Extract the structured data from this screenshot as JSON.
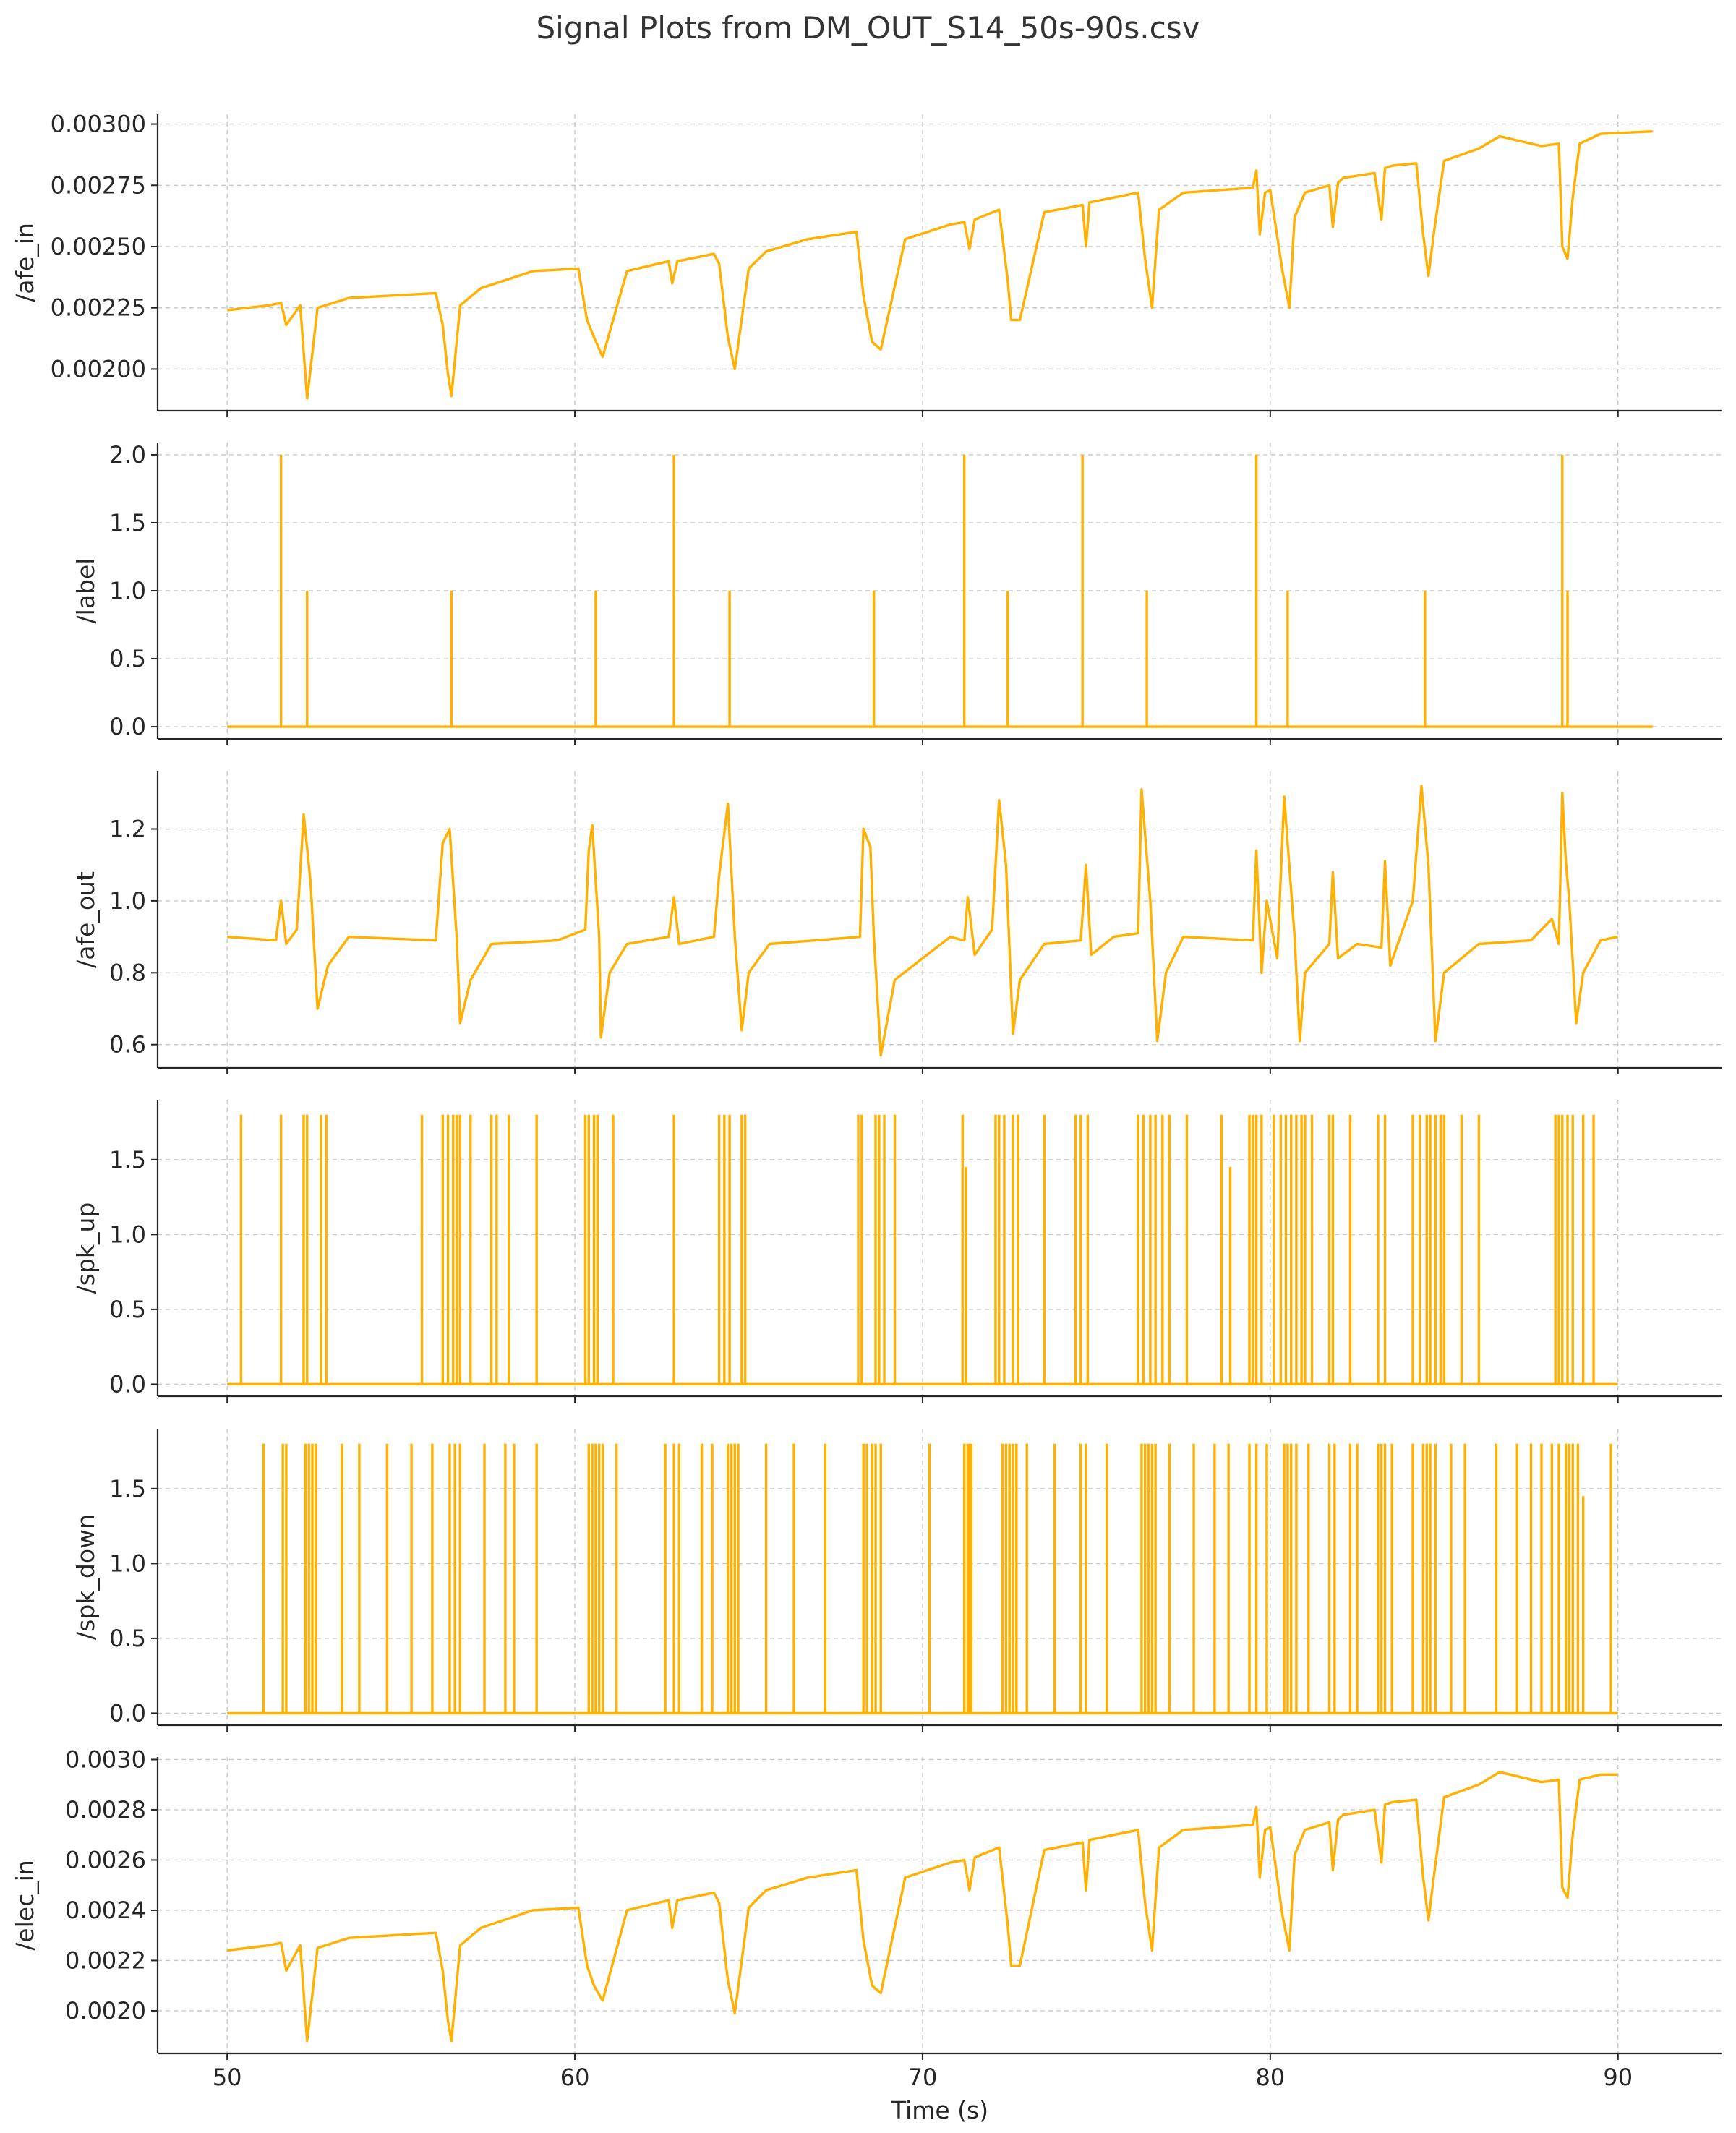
{
  "title": "Signal Plots from DM_OUT_S14_50s-90s.csv",
  "colors": {
    "line": "#FFB000",
    "grid": "#c8c8c8",
    "axis": "#262626"
  },
  "chart_data": [
    {
      "type": "line",
      "ylabel": "/afe_in",
      "xlim": [
        48,
        93
      ],
      "ylim": [
        0.00183,
        0.00304
      ],
      "x_ticks": [
        50,
        60,
        70,
        80,
        90
      ],
      "y_ticks": [
        0.002,
        0.00225,
        0.0025,
        0.00275,
        0.003
      ],
      "y_tick_labels": [
        "0.00200",
        "0.00225",
        "0.00250",
        "0.00275",
        "0.00300"
      ],
      "grid": true,
      "x": [
        50,
        51.2,
        51.55,
        51.7,
        52.1,
        52.3,
        52.6,
        53.5,
        56.0,
        56.2,
        56.35,
        56.45,
        56.7,
        57.3,
        58.8,
        60.1,
        60.35,
        60.55,
        60.8,
        61.5,
        62.7,
        62.8,
        62.95,
        64.0,
        64.15,
        64.4,
        64.6,
        65.0,
        65.5,
        66.7,
        68.1,
        68.3,
        68.55,
        68.8,
        69.5,
        70.8,
        71.2,
        71.35,
        71.5,
        72.2,
        72.45,
        72.55,
        72.8,
        73.5,
        74.6,
        74.7,
        74.8,
        75.5,
        76.2,
        76.4,
        76.6,
        76.8,
        77.5,
        79.5,
        79.6,
        79.7,
        79.85,
        80.0,
        80.35,
        80.55,
        80.7,
        81.0,
        81.7,
        81.8,
        81.95,
        82.1,
        83.0,
        83.2,
        83.3,
        83.5,
        84.2,
        84.4,
        84.55,
        84.7,
        85.0,
        86.0,
        86.6,
        87.8,
        88.3,
        88.4,
        88.55,
        88.7,
        88.9,
        89.5,
        91.0
      ],
      "y": [
        0.00224,
        0.00226,
        0.00227,
        0.00218,
        0.00226,
        0.00188,
        0.00225,
        0.00229,
        0.00231,
        0.00218,
        0.00198,
        0.00189,
        0.00226,
        0.00233,
        0.0024,
        0.00241,
        0.0022,
        0.00213,
        0.00205,
        0.0024,
        0.00244,
        0.00235,
        0.00244,
        0.00247,
        0.00243,
        0.00213,
        0.002,
        0.00241,
        0.00248,
        0.00253,
        0.00256,
        0.0023,
        0.00211,
        0.00208,
        0.00253,
        0.00259,
        0.0026,
        0.00249,
        0.00261,
        0.00265,
        0.00236,
        0.0022,
        0.0022,
        0.00264,
        0.00267,
        0.0025,
        0.00268,
        0.0027,
        0.00272,
        0.00245,
        0.00225,
        0.00265,
        0.00272,
        0.00274,
        0.00281,
        0.00255,
        0.00272,
        0.00273,
        0.0024,
        0.00225,
        0.00262,
        0.00272,
        0.00275,
        0.00258,
        0.00276,
        0.00278,
        0.0028,
        0.00261,
        0.00282,
        0.00283,
        0.00284,
        0.00255,
        0.00238,
        0.00255,
        0.00285,
        0.0029,
        0.00295,
        0.00291,
        0.00292,
        0.0025,
        0.00245,
        0.0027,
        0.00292,
        0.00296,
        0.00297
      ]
    },
    {
      "type": "line",
      "ylabel": "/label",
      "xlim": [
        48,
        93
      ],
      "ylim": [
        -0.09,
        2.09
      ],
      "x_ticks": [
        50,
        60,
        70,
        80,
        90
      ],
      "y_ticks": [
        0,
        0.5,
        1,
        1.5,
        2
      ],
      "y_tick_labels": [
        "0.0",
        "0.5",
        "1.0",
        "1.5",
        "2.0"
      ],
      "grid": true,
      "x_range": [
        50,
        91
      ],
      "baseline": 0,
      "spikes": [
        {
          "x": 51.55,
          "value": 2
        },
        {
          "x": 52.3,
          "value": 1
        },
        {
          "x": 56.45,
          "value": 1
        },
        {
          "x": 60.6,
          "value": 1
        },
        {
          "x": 62.85,
          "value": 2
        },
        {
          "x": 64.45,
          "value": 1
        },
        {
          "x": 68.6,
          "value": 1
        },
        {
          "x": 71.2,
          "value": 2
        },
        {
          "x": 72.45,
          "value": 1
        },
        {
          "x": 74.6,
          "value": 2
        },
        {
          "x": 76.45,
          "value": 1
        },
        {
          "x": 79.6,
          "value": 2
        },
        {
          "x": 80.5,
          "value": 1
        },
        {
          "x": 84.45,
          "value": 1
        },
        {
          "x": 88.4,
          "value": 2
        },
        {
          "x": 88.55,
          "value": 1
        }
      ]
    },
    {
      "type": "line",
      "ylabel": "/afe_out",
      "xlim": [
        48,
        93
      ],
      "ylim": [
        0.535,
        1.36
      ],
      "x_ticks": [
        50,
        60,
        70,
        80,
        90
      ],
      "y_ticks": [
        0.6,
        0.8,
        1.0,
        1.2
      ],
      "y_tick_labels": [
        "0.6",
        "0.8",
        "1.0",
        "1.2"
      ],
      "grid": true,
      "x": [
        50,
        51.4,
        51.55,
        51.7,
        52.0,
        52.2,
        52.4,
        52.6,
        52.9,
        53.5,
        56.0,
        56.2,
        56.4,
        56.6,
        56.7,
        57.0,
        57.6,
        59.5,
        60.3,
        60.4,
        60.5,
        60.7,
        60.75,
        61.0,
        61.5,
        62.7,
        62.85,
        63.0,
        64.0,
        64.15,
        64.4,
        64.6,
        64.8,
        65.0,
        65.6,
        68.2,
        68.3,
        68.5,
        68.6,
        68.8,
        69.2,
        70.8,
        71.2,
        71.3,
        71.5,
        72.0,
        72.2,
        72.4,
        72.6,
        72.8,
        73.5,
        74.55,
        74.7,
        74.85,
        75.5,
        76.2,
        76.3,
        76.55,
        76.75,
        77.0,
        77.5,
        79.5,
        79.6,
        79.75,
        79.9,
        80.2,
        80.4,
        80.7,
        80.85,
        81.0,
        81.7,
        81.8,
        81.95,
        82.5,
        83.2,
        83.3,
        83.45,
        84.1,
        84.35,
        84.55,
        84.75,
        85.0,
        86.0,
        87.5,
        88.1,
        88.3,
        88.4,
        88.5,
        88.6,
        88.8,
        89.0,
        89.5,
        90.0
      ],
      "y": [
        0.9,
        0.89,
        1.0,
        0.88,
        0.92,
        1.24,
        1.05,
        0.7,
        0.82,
        0.9,
        0.89,
        1.16,
        1.2,
        0.9,
        0.66,
        0.78,
        0.88,
        0.89,
        0.92,
        1.14,
        1.21,
        0.9,
        0.62,
        0.8,
        0.88,
        0.9,
        1.01,
        0.88,
        0.9,
        1.07,
        1.27,
        0.9,
        0.64,
        0.8,
        0.88,
        0.9,
        1.2,
        1.15,
        0.9,
        0.57,
        0.78,
        0.9,
        0.89,
        1.01,
        0.85,
        0.92,
        1.28,
        1.1,
        0.63,
        0.78,
        0.88,
        0.89,
        1.1,
        0.85,
        0.9,
        0.91,
        1.31,
        1.0,
        0.61,
        0.8,
        0.9,
        0.89,
        1.14,
        0.8,
        1.0,
        0.84,
        1.29,
        0.9,
        0.61,
        0.8,
        0.88,
        1.08,
        0.84,
        0.88,
        0.87,
        1.11,
        0.82,
        1.0,
        1.32,
        1.1,
        0.61,
        0.8,
        0.88,
        0.89,
        0.95,
        0.88,
        1.3,
        1.11,
        1.0,
        0.66,
        0.8,
        0.89,
        0.9
      ]
    },
    {
      "type": "line",
      "ylabel": "/spk_up",
      "xlim": [
        48,
        93
      ],
      "ylim": [
        -0.08,
        1.9
      ],
      "x_ticks": [
        50,
        60,
        70,
        80,
        90
      ],
      "y_ticks": [
        0,
        0.5,
        1,
        1.5
      ],
      "y_tick_labels": [
        "0.0",
        "0.5",
        "1.0",
        "1.5"
      ],
      "grid": true,
      "x_range": [
        50,
        90
      ],
      "baseline": 0,
      "spike_height": 1.8,
      "spike_times": [
        50.4,
        51.55,
        52.2,
        52.3,
        52.7,
        52.85,
        55.6,
        56.2,
        56.35,
        56.5,
        56.6,
        56.7,
        57.0,
        57.6,
        57.75,
        58.1,
        58.9,
        60.3,
        60.4,
        60.55,
        60.65,
        61.1,
        62.85,
        64.15,
        64.3,
        64.45,
        64.8,
        64.9,
        68.15,
        68.25,
        68.65,
        68.75,
        68.9,
        69.2,
        71.15,
        72.1,
        72.2,
        72.35,
        72.6,
        72.75,
        73.5,
        74.4,
        74.55,
        74.75,
        76.2,
        76.35,
        76.55,
        76.7,
        76.9,
        77.1,
        77.6,
        78.6,
        79.4,
        79.5,
        79.6,
        79.75,
        80.1,
        80.3,
        80.45,
        80.6,
        80.75,
        80.9,
        81.0,
        81.2,
        81.7,
        81.8,
        82.3,
        83.1,
        83.3,
        84.1,
        84.3,
        84.5,
        84.6,
        84.75,
        84.9,
        85.0,
        85.5,
        86.0,
        88.2,
        88.3,
        88.4,
        88.55,
        88.7,
        89.0,
        89.3
      ],
      "partial_spikes": [
        {
          "x": 71.25,
          "value": 1.45
        },
        {
          "x": 78.85,
          "value": 1.45
        }
      ]
    },
    {
      "type": "line",
      "ylabel": "/spk_down",
      "xlim": [
        48,
        93
      ],
      "ylim": [
        -0.08,
        1.9
      ],
      "x_ticks": [
        50,
        60,
        70,
        80,
        90
      ],
      "y_ticks": [
        0,
        0.5,
        1,
        1.5
      ],
      "y_tick_labels": [
        "0.0",
        "0.5",
        "1.0",
        "1.5"
      ],
      "grid": true,
      "x_range": [
        50,
        90
      ],
      "baseline": 0,
      "spike_height": 1.8,
      "spike_times": [
        51.05,
        51.6,
        51.7,
        52.25,
        52.35,
        52.45,
        52.55,
        53.3,
        53.8,
        54.6,
        55.3,
        55.9,
        56.4,
        56.55,
        56.7,
        57.4,
        58.0,
        58.25,
        58.9,
        60.4,
        60.5,
        60.6,
        60.7,
        60.8,
        61.2,
        62.6,
        62.85,
        63.0,
        63.65,
        63.95,
        64.4,
        64.5,
        64.6,
        64.7,
        65.5,
        66.3,
        67.2,
        68.3,
        68.4,
        68.55,
        68.65,
        68.8,
        70.2,
        71.2,
        71.3,
        71.35,
        71.4,
        72.3,
        72.4,
        72.5,
        72.6,
        72.7,
        73.0,
        73.8,
        74.55,
        74.7,
        75.3,
        76.3,
        76.4,
        76.5,
        76.6,
        76.7,
        77.1,
        77.8,
        78.4,
        78.8,
        79.4,
        79.6,
        79.9,
        80.4,
        80.5,
        80.6,
        80.75,
        81.1,
        81.7,
        81.85,
        82.3,
        82.5,
        83.1,
        83.2,
        83.3,
        83.5,
        84.1,
        84.4,
        84.5,
        84.6,
        84.75,
        85.2,
        85.6,
        86.5,
        87.1,
        87.5,
        87.8,
        88.1,
        88.3,
        88.5,
        88.6,
        88.7,
        88.85,
        89.8
      ],
      "partial_spikes": [
        {
          "x": 89.0,
          "value": 1.45
        }
      ]
    },
    {
      "type": "line",
      "ylabel": "/elec_in",
      "xlabel": "Time (s)",
      "xlim": [
        48,
        93
      ],
      "ylim": [
        0.00183,
        0.00301
      ],
      "x_ticks": [
        50,
        60,
        70,
        80,
        90
      ],
      "x_tick_labels": [
        "50",
        "60",
        "70",
        "80",
        "90"
      ],
      "y_ticks": [
        0.002,
        0.0022,
        0.0024,
        0.0026,
        0.0028,
        0.003
      ],
      "y_tick_labels": [
        "0.0020",
        "0.0022",
        "0.0024",
        "0.0026",
        "0.0028",
        "0.0030"
      ],
      "grid": true,
      "x": [
        50,
        51.2,
        51.55,
        51.7,
        52.1,
        52.3,
        52.6,
        53.5,
        56.0,
        56.2,
        56.35,
        56.45,
        56.7,
        57.3,
        58.8,
        60.1,
        60.35,
        60.55,
        60.8,
        61.5,
        62.7,
        62.8,
        62.95,
        64.0,
        64.15,
        64.4,
        64.6,
        65.0,
        65.5,
        66.7,
        68.1,
        68.3,
        68.55,
        68.8,
        69.5,
        70.8,
        71.2,
        71.35,
        71.5,
        72.2,
        72.45,
        72.55,
        72.8,
        73.5,
        74.6,
        74.7,
        74.8,
        75.5,
        76.2,
        76.4,
        76.6,
        76.8,
        77.5,
        79.5,
        79.6,
        79.7,
        79.85,
        80.0,
        80.35,
        80.55,
        80.7,
        81.0,
        81.7,
        81.8,
        81.95,
        82.1,
        83.0,
        83.2,
        83.3,
        83.5,
        84.2,
        84.4,
        84.55,
        84.7,
        85.0,
        86.0,
        86.6,
        87.8,
        88.3,
        88.4,
        88.55,
        88.7,
        88.9,
        89.5,
        90.0
      ],
      "y": [
        0.00224,
        0.00226,
        0.00227,
        0.00216,
        0.00226,
        0.00188,
        0.00225,
        0.00229,
        0.00231,
        0.00216,
        0.00196,
        0.00188,
        0.00226,
        0.00233,
        0.0024,
        0.00241,
        0.00218,
        0.0021,
        0.00204,
        0.0024,
        0.00244,
        0.00233,
        0.00244,
        0.00247,
        0.00243,
        0.00212,
        0.00199,
        0.00241,
        0.00248,
        0.00253,
        0.00256,
        0.00228,
        0.0021,
        0.00207,
        0.00253,
        0.00259,
        0.0026,
        0.00248,
        0.00261,
        0.00265,
        0.00234,
        0.00218,
        0.00218,
        0.00264,
        0.00267,
        0.00248,
        0.00268,
        0.0027,
        0.00272,
        0.00243,
        0.00224,
        0.00265,
        0.00272,
        0.00274,
        0.00281,
        0.00253,
        0.00272,
        0.00273,
        0.00238,
        0.00224,
        0.00262,
        0.00272,
        0.00275,
        0.00256,
        0.00276,
        0.00278,
        0.0028,
        0.00259,
        0.00282,
        0.00283,
        0.00284,
        0.00253,
        0.00236,
        0.00253,
        0.00285,
        0.0029,
        0.00295,
        0.00291,
        0.00292,
        0.00249,
        0.00245,
        0.0027,
        0.00292,
        0.00294,
        0.00294
      ]
    }
  ]
}
